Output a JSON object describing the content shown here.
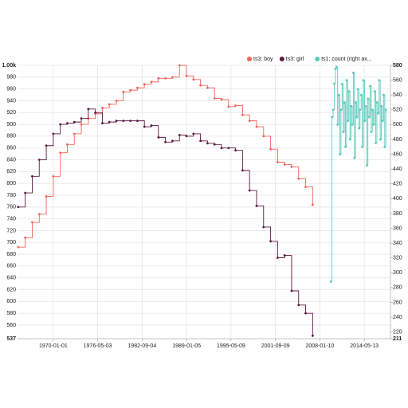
{
  "chart_data": {
    "type": "step-line",
    "legend": "top-right",
    "grid": true,
    "x": [
      1965,
      1966,
      1967,
      1968,
      1969,
      1970,
      1971,
      1972,
      1973,
      1974,
      1975,
      1976,
      1977,
      1978,
      1979,
      1980,
      1981,
      1982,
      1983,
      1984,
      1985,
      1986,
      1987,
      1988,
      1989,
      1990,
      1991,
      1992,
      1993,
      1994,
      1995,
      1996,
      1997,
      1998,
      1999,
      2000,
      2001,
      2002,
      2003,
      2004,
      2005,
      2006,
      2007
    ],
    "xlim": [
      1964.9,
      2018.1
    ],
    "xticks": [
      {
        "value": 1970.0,
        "label": "1970-01-01"
      },
      {
        "value": 1976.33,
        "label": "1976-05-03"
      },
      {
        "value": 1982.67,
        "label": "1982-09-04"
      },
      {
        "value": 1989.01,
        "label": "1989-01-05"
      },
      {
        "value": 1995.35,
        "label": "1995-05-09"
      },
      {
        "value": 2001.69,
        "label": "2001-09-09"
      },
      {
        "value": 2008.03,
        "label": "2008-01-10"
      },
      {
        "value": 2014.36,
        "label": "2014-05-13"
      }
    ],
    "ylim": [
      537,
      1000
    ],
    "yticks": [
      {
        "value": 537,
        "label": "537"
      },
      560,
      580,
      600,
      620,
      640,
      660,
      680,
      700,
      720,
      740,
      760,
      780,
      800,
      820,
      840,
      860,
      880,
      900,
      920,
      940,
      960,
      980,
      {
        "value": 1000,
        "label": "1.00k"
      }
    ],
    "y2lim": [
      211,
      580
    ],
    "y2ticks": [
      211,
      220,
      240,
      260,
      280,
      300,
      320,
      340,
      360,
      380,
      400,
      420,
      440,
      460,
      480,
      500,
      520,
      540,
      560,
      580
    ],
    "series": [
      {
        "name": "ts3: boy",
        "color": "#f0665c",
        "values": [
          692,
          708,
          734,
          748,
          778,
          812,
          852,
          866,
          884,
          900,
          910,
          918,
          928,
          934,
          940,
          955,
          958,
          962,
          968,
          972,
          978,
          978,
          980,
          1000,
          982,
          976,
          966,
          962,
          944,
          942,
          930,
          932,
          916,
          906,
          896,
          880,
          858,
          836,
          832,
          828,
          808,
          794,
          764
        ]
      },
      {
        "name": "ts3: girl",
        "color": "#5a1a40",
        "values": [
          760,
          784,
          812,
          840,
          864,
          884,
          900,
          902,
          904,
          910,
          926,
          920,
          902,
          904,
          906,
          906,
          906,
          906,
          896,
          898,
          878,
          870,
          872,
          882,
          880,
          884,
          872,
          868,
          866,
          860,
          860,
          856,
          822,
          788,
          762,
          726,
          702,
          674,
          678,
          618,
          594,
          580,
          542
        ]
      },
      {
        "name": "ts1: count (right ax...",
        "color": "#5ecbbd",
        "axis": "y2",
        "x": [
          2009.6,
          2009.76,
          2009.92,
          2010.08,
          2010.24,
          2010.4,
          2010.56,
          2010.72,
          2010.88,
          2011.04,
          2011.2,
          2011.36,
          2011.52,
          2011.68,
          2011.84,
          2012,
          2012.16,
          2012.32,
          2012.48,
          2012.64,
          2012.8,
          2012.96,
          2013.12,
          2013.28,
          2013.44,
          2013.6,
          2013.76,
          2013.92,
          2014.08,
          2014.24,
          2014.4,
          2014.56,
          2014.72,
          2014.88,
          2015.04,
          2015.2,
          2015.36,
          2015.52,
          2015.68,
          2015.84,
          2016,
          2016.16,
          2016.32,
          2016.48,
          2016.64,
          2016.8,
          2016.96,
          2017.12,
          2017.28,
          2017.44
        ],
        "values": [
          288,
          510,
          520,
          555,
          575,
          578,
          500,
          540,
          460,
          520,
          555,
          490,
          530,
          470,
          560,
          505,
          545,
          480,
          525,
          500,
          570,
          455,
          530,
          510,
          548,
          495,
          520,
          540,
          470,
          560,
          505,
          525,
          445,
          535,
          510,
          552,
          490,
          520,
          500,
          545,
          475,
          530,
          515,
          560,
          480,
          525,
          505,
          540,
          470,
          520
        ]
      }
    ]
  }
}
